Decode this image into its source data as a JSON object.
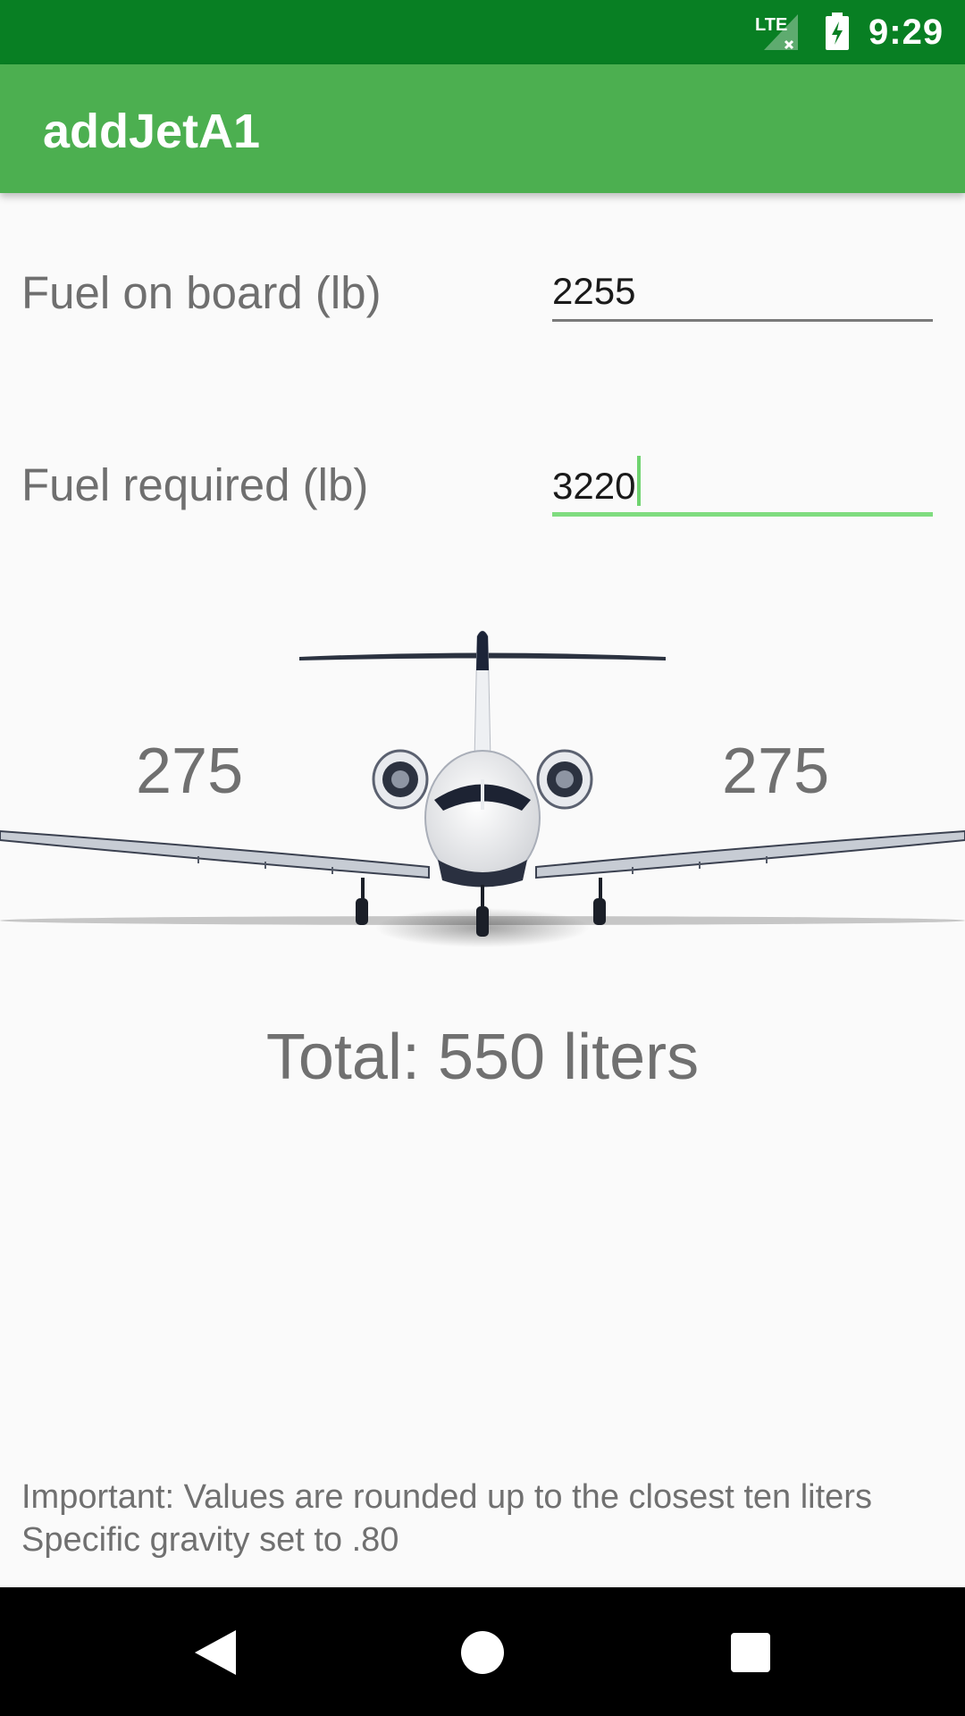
{
  "status_bar": {
    "network": "LTE",
    "time": "9:29"
  },
  "app_bar": {
    "title": "addJetA1"
  },
  "form": {
    "fuel_on_board": {
      "label": "Fuel on board (lb)",
      "value": "2255"
    },
    "fuel_required": {
      "label": "Fuel required (lb)",
      "value": "3220"
    }
  },
  "distribution": {
    "left_wing": "275",
    "right_wing": "275",
    "total": "Total: 550 liters"
  },
  "notes": {
    "line1": "Important: Values are rounded up to the closest ten liters",
    "line2": "Specific gravity set to .80"
  },
  "colors": {
    "status_bar": "#087f23",
    "app_bar": "#4caf50",
    "accent": "#7fdc7f"
  },
  "icons": {
    "network": "lte-signal-icon",
    "battery": "battery-charging-icon",
    "back": "back-icon",
    "home": "home-icon",
    "recents": "recents-icon",
    "aircraft": "business-jet-image"
  }
}
